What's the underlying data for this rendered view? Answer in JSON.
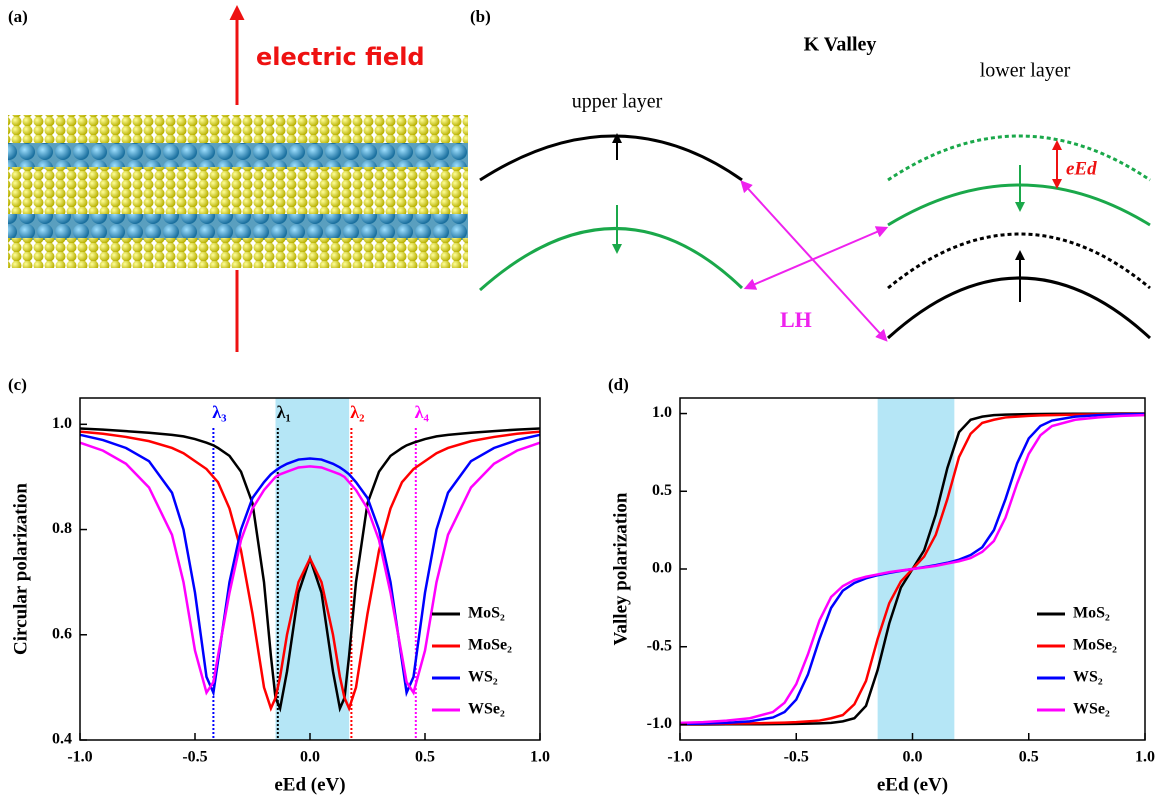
{
  "panel_a": {
    "label": "(a)",
    "annotation": "electric field"
  },
  "panel_b": {
    "label": "(b)",
    "title": "K Valley",
    "upper_label": "upper layer",
    "lower_label": "lower layer",
    "shift_label": "eEd",
    "transition_label": "LH"
  },
  "chart_data": [
    {
      "type": "line",
      "label": "(c)",
      "x_label": "eEd (eV)",
      "y_label": "Circular polarization",
      "xlim": [
        -1,
        1
      ],
      "ylim": [
        0.4,
        1.05
      ],
      "xticks": [
        {
          "value": -1,
          "label": "-1.0"
        },
        -0.5,
        {
          "value": 0,
          "label": "0.0"
        },
        0.5,
        {
          "value": 1,
          "label": "1.0"
        }
      ],
      "yticks": [
        0.4,
        0.6,
        0.8,
        {
          "value": 1,
          "label": "1.0"
        }
      ],
      "shade": [
        -0.15,
        0.17
      ],
      "shade_color": "#b5e6f6",
      "legend": "lower right",
      "markers": [
        {
          "x": -0.42,
          "label": "λ₃",
          "color": "#0000ff"
        },
        {
          "x": -0.14,
          "label": "λ₁",
          "color": "#000000"
        },
        {
          "x": 0.18,
          "label": "λ₂",
          "color": "#ff0000"
        },
        {
          "x": 0.46,
          "label": "λ₄",
          "color": "#ff00ff"
        }
      ],
      "x": [
        -1,
        -0.9,
        -0.8,
        -0.7,
        -0.6,
        -0.55,
        -0.5,
        -0.45,
        -0.42,
        -0.4,
        -0.35,
        -0.3,
        -0.25,
        -0.2,
        -0.17,
        -0.15,
        -0.13,
        -0.1,
        -0.05,
        0,
        0.05,
        0.1,
        0.13,
        0.15,
        0.17,
        0.2,
        0.25,
        0.3,
        0.35,
        0.4,
        0.42,
        0.45,
        0.5,
        0.55,
        0.6,
        0.7,
        0.8,
        0.9,
        1
      ],
      "series": [
        {
          "name": "MoS₂",
          "color": "#000000",
          "values": [
            0.992,
            0.99,
            0.987,
            0.984,
            0.98,
            0.977,
            0.972,
            0.965,
            0.96,
            0.955,
            0.94,
            0.91,
            0.85,
            0.7,
            0.56,
            0.48,
            0.46,
            0.53,
            0.68,
            0.745,
            0.68,
            0.53,
            0.46,
            0.48,
            0.56,
            0.7,
            0.85,
            0.91,
            0.94,
            0.955,
            0.96,
            0.965,
            0.972,
            0.977,
            0.98,
            0.984,
            0.987,
            0.99,
            0.992
          ]
        },
        {
          "name": "MoSe₂",
          "color": "#ff0000",
          "values": [
            0.986,
            0.982,
            0.976,
            0.968,
            0.955,
            0.945,
            0.93,
            0.915,
            0.9,
            0.89,
            0.84,
            0.76,
            0.64,
            0.5,
            0.46,
            0.48,
            0.52,
            0.6,
            0.7,
            0.745,
            0.7,
            0.6,
            0.52,
            0.48,
            0.46,
            0.5,
            0.64,
            0.76,
            0.84,
            0.89,
            0.9,
            0.915,
            0.93,
            0.945,
            0.955,
            0.968,
            0.976,
            0.982,
            0.986
          ]
        },
        {
          "name": "WS₂",
          "color": "#0000ff",
          "values": [
            0.98,
            0.97,
            0.955,
            0.93,
            0.87,
            0.8,
            0.68,
            0.52,
            0.49,
            0.55,
            0.7,
            0.8,
            0.86,
            0.89,
            0.905,
            0.912,
            0.918,
            0.925,
            0.933,
            0.935,
            0.933,
            0.925,
            0.918,
            0.912,
            0.905,
            0.89,
            0.86,
            0.8,
            0.7,
            0.55,
            0.49,
            0.52,
            0.68,
            0.8,
            0.87,
            0.93,
            0.955,
            0.97,
            0.98
          ]
        },
        {
          "name": "WSe₂",
          "color": "#ff00ff",
          "values": [
            0.965,
            0.95,
            0.925,
            0.88,
            0.79,
            0.7,
            0.57,
            0.49,
            0.51,
            0.56,
            0.68,
            0.78,
            0.84,
            0.875,
            0.89,
            0.9,
            0.905,
            0.91,
            0.918,
            0.92,
            0.918,
            0.91,
            0.905,
            0.9,
            0.89,
            0.875,
            0.84,
            0.78,
            0.68,
            0.56,
            0.51,
            0.49,
            0.57,
            0.7,
            0.79,
            0.88,
            0.925,
            0.95,
            0.965
          ]
        }
      ]
    },
    {
      "type": "line",
      "label": "(d)",
      "x_label": "eEd (eV)",
      "y_label": "Valley polarization",
      "xlim": [
        -1,
        1
      ],
      "ylim": [
        -1.1,
        1.1
      ],
      "xticks": [
        {
          "value": -1,
          "label": "-1.0"
        },
        -0.5,
        {
          "value": 0,
          "label": "0.0"
        },
        0.5,
        {
          "value": 1,
          "label": "1.0"
        }
      ],
      "yticks": [
        {
          "value": -1,
          "label": "-1.0"
        },
        -0.5,
        {
          "value": 0,
          "label": "0.0"
        },
        0.5,
        {
          "value": 1,
          "label": "1.0"
        }
      ],
      "shade": [
        -0.15,
        0.18
      ],
      "shade_color": "#b5e6f6",
      "legend": "lower right",
      "x": [
        -1,
        -0.9,
        -0.8,
        -0.7,
        -0.6,
        -0.55,
        -0.5,
        -0.45,
        -0.4,
        -0.35,
        -0.3,
        -0.25,
        -0.2,
        -0.15,
        -0.1,
        -0.05,
        0,
        0.05,
        0.1,
        0.15,
        0.2,
        0.25,
        0.3,
        0.35,
        0.4,
        0.45,
        0.5,
        0.55,
        0.6,
        0.7,
        0.8,
        0.9,
        1
      ],
      "series": [
        {
          "name": "MoS₂",
          "color": "#000000",
          "values": [
            -1,
            -1,
            -0.999,
            -0.999,
            -0.998,
            -0.997,
            -0.996,
            -0.995,
            -0.993,
            -0.99,
            -0.98,
            -0.96,
            -0.88,
            -0.65,
            -0.35,
            -0.12,
            0,
            0.12,
            0.35,
            0.65,
            0.88,
            0.96,
            0.98,
            0.99,
            0.993,
            0.995,
            0.996,
            0.997,
            0.998,
            0.999,
            0.999,
            1,
            1
          ]
        },
        {
          "name": "MoSe₂",
          "color": "#ff0000",
          "values": [
            -0.998,
            -0.997,
            -0.995,
            -0.993,
            -0.99,
            -0.988,
            -0.985,
            -0.98,
            -0.975,
            -0.96,
            -0.94,
            -0.87,
            -0.72,
            -0.45,
            -0.22,
            -0.08,
            0,
            0.08,
            0.22,
            0.45,
            0.72,
            0.87,
            0.94,
            0.96,
            0.975,
            0.98,
            0.985,
            0.988,
            0.99,
            0.993,
            0.995,
            0.997,
            0.998
          ]
        },
        {
          "name": "WS₂",
          "color": "#0000ff",
          "values": [
            -0.997,
            -0.995,
            -0.99,
            -0.98,
            -0.955,
            -0.92,
            -0.84,
            -0.68,
            -0.45,
            -0.25,
            -0.14,
            -0.09,
            -0.06,
            -0.04,
            -0.025,
            -0.012,
            0,
            0.012,
            0.025,
            0.04,
            0.06,
            0.09,
            0.14,
            0.25,
            0.45,
            0.68,
            0.84,
            0.92,
            0.955,
            0.98,
            0.99,
            0.995,
            0.997
          ]
        },
        {
          "name": "WSe₂",
          "color": "#ff00ff",
          "values": [
            -0.99,
            -0.985,
            -0.975,
            -0.96,
            -0.92,
            -0.86,
            -0.74,
            -0.55,
            -0.33,
            -0.18,
            -0.11,
            -0.07,
            -0.05,
            -0.035,
            -0.02,
            -0.01,
            0,
            0.01,
            0.02,
            0.035,
            0.05,
            0.07,
            0.11,
            0.18,
            0.33,
            0.55,
            0.74,
            0.86,
            0.92,
            0.96,
            0.975,
            0.985,
            0.99
          ]
        }
      ]
    }
  ]
}
